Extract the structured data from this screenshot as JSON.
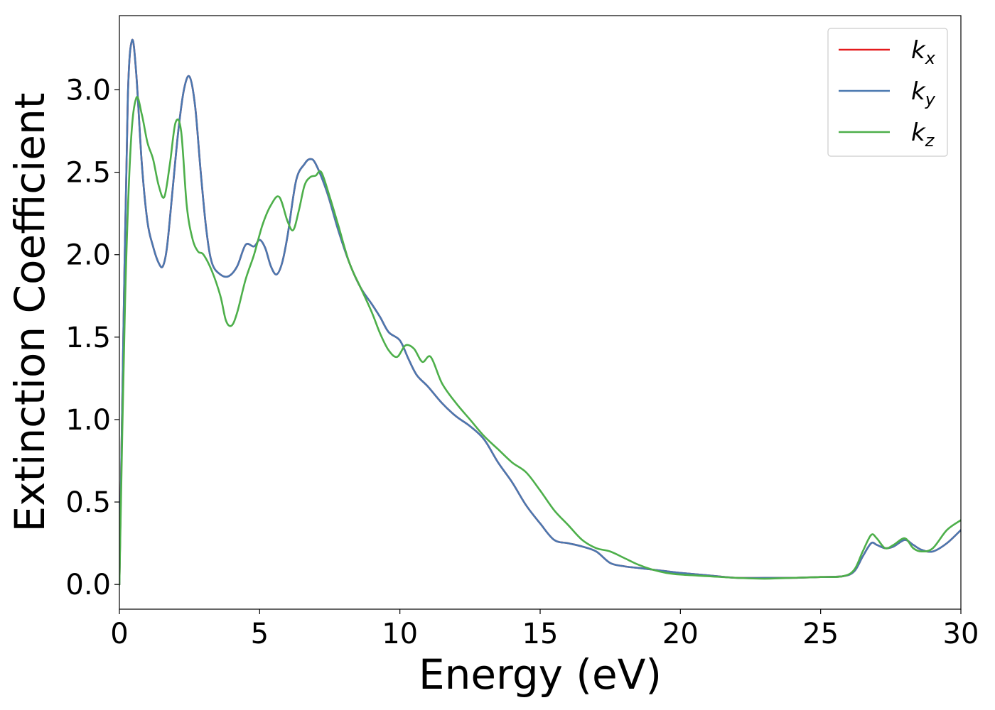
{
  "chart_data": {
    "type": "line",
    "title": "",
    "xlabel": "Energy (eV)",
    "ylabel": "Extinction Coefficient",
    "xlim": [
      0,
      30
    ],
    "ylim": [
      -0.15,
      3.45
    ],
    "xticks": [
      0,
      5,
      10,
      15,
      20,
      25,
      30
    ],
    "xtick_labels": [
      "0",
      "5",
      "10",
      "15",
      "20",
      "25",
      "30"
    ],
    "yticks": [
      0.0,
      0.5,
      1.0,
      1.5,
      2.0,
      2.5,
      3.0
    ],
    "ytick_labels": [
      "0.0",
      "0.5",
      "1.0",
      "1.5",
      "2.0",
      "2.5",
      "3.0"
    ],
    "grid": false,
    "legend_position": "top-right",
    "series": [
      {
        "name": "k",
        "subscript": "x",
        "color": "#e41a1c",
        "x": [
          0,
          0.15,
          0.3,
          0.45,
          0.6,
          0.8,
          1.0,
          1.2,
          1.4,
          1.55,
          1.7,
          1.9,
          2.1,
          2.3,
          2.5,
          2.7,
          2.9,
          3.1,
          3.3,
          3.6,
          3.9,
          4.2,
          4.5,
          4.8,
          5.0,
          5.2,
          5.4,
          5.6,
          5.8,
          6.0,
          6.3,
          6.6,
          6.8,
          7.0,
          7.4,
          7.8,
          8.2,
          8.6,
          9.0,
          9.3,
          9.6,
          10.0,
          10.3,
          10.6,
          11.0,
          11.5,
          12.0,
          12.5,
          13.0,
          13.5,
          14.0,
          14.5,
          15.0,
          15.5,
          16.0,
          16.5,
          17.0,
          17.5,
          18.0,
          18.5,
          19.0,
          19.5,
          20.0,
          21.0,
          22.0,
          23.0,
          24.0,
          25.0,
          25.8,
          26.2,
          26.5,
          26.8,
          27.0,
          27.3,
          27.6,
          28.0,
          28.3,
          28.6,
          29.0,
          29.5,
          30.0
        ],
        "y": [
          0.0,
          1.6,
          2.95,
          3.3,
          3.1,
          2.55,
          2.2,
          2.05,
          1.95,
          1.93,
          2.05,
          2.4,
          2.75,
          3.0,
          3.08,
          2.9,
          2.5,
          2.15,
          1.95,
          1.88,
          1.87,
          1.93,
          2.06,
          2.05,
          2.09,
          2.04,
          1.93,
          1.88,
          1.95,
          2.12,
          2.45,
          2.55,
          2.58,
          2.55,
          2.38,
          2.15,
          1.95,
          1.8,
          1.7,
          1.62,
          1.53,
          1.48,
          1.37,
          1.27,
          1.2,
          1.1,
          1.02,
          0.96,
          0.88,
          0.74,
          0.62,
          0.48,
          0.37,
          0.27,
          0.25,
          0.23,
          0.2,
          0.13,
          0.11,
          0.1,
          0.09,
          0.08,
          0.07,
          0.055,
          0.04,
          0.04,
          0.04,
          0.045,
          0.05,
          0.08,
          0.17,
          0.25,
          0.24,
          0.22,
          0.23,
          0.27,
          0.24,
          0.21,
          0.2,
          0.25,
          0.33
        ]
      },
      {
        "name": "k",
        "subscript": "y",
        "color": "#4a78b0",
        "x": [
          0,
          0.15,
          0.3,
          0.45,
          0.6,
          0.8,
          1.0,
          1.2,
          1.4,
          1.55,
          1.7,
          1.9,
          2.1,
          2.3,
          2.5,
          2.7,
          2.9,
          3.1,
          3.3,
          3.6,
          3.9,
          4.2,
          4.5,
          4.8,
          5.0,
          5.2,
          5.4,
          5.6,
          5.8,
          6.0,
          6.3,
          6.6,
          6.8,
          7.0,
          7.4,
          7.8,
          8.2,
          8.6,
          9.0,
          9.3,
          9.6,
          10.0,
          10.3,
          10.6,
          11.0,
          11.5,
          12.0,
          12.5,
          13.0,
          13.5,
          14.0,
          14.5,
          15.0,
          15.5,
          16.0,
          16.5,
          17.0,
          17.5,
          18.0,
          18.5,
          19.0,
          19.5,
          20.0,
          21.0,
          22.0,
          23.0,
          24.0,
          25.0,
          25.8,
          26.2,
          26.5,
          26.8,
          27.0,
          27.3,
          27.6,
          28.0,
          28.3,
          28.6,
          29.0,
          29.5,
          30.0
        ],
        "y": [
          0.0,
          1.6,
          2.95,
          3.3,
          3.1,
          2.55,
          2.2,
          2.05,
          1.95,
          1.93,
          2.05,
          2.4,
          2.75,
          3.0,
          3.08,
          2.9,
          2.5,
          2.15,
          1.95,
          1.88,
          1.87,
          1.93,
          2.06,
          2.05,
          2.09,
          2.04,
          1.93,
          1.88,
          1.95,
          2.12,
          2.45,
          2.55,
          2.58,
          2.55,
          2.38,
          2.15,
          1.95,
          1.8,
          1.7,
          1.62,
          1.53,
          1.48,
          1.37,
          1.27,
          1.2,
          1.1,
          1.02,
          0.96,
          0.88,
          0.74,
          0.62,
          0.48,
          0.37,
          0.27,
          0.25,
          0.23,
          0.2,
          0.13,
          0.11,
          0.1,
          0.09,
          0.08,
          0.07,
          0.055,
          0.04,
          0.04,
          0.04,
          0.045,
          0.05,
          0.08,
          0.17,
          0.25,
          0.24,
          0.22,
          0.23,
          0.27,
          0.24,
          0.21,
          0.2,
          0.25,
          0.33
        ]
      },
      {
        "name": "k",
        "subscript": "z",
        "color": "#4daf4a",
        "x": [
          0,
          0.2,
          0.4,
          0.6,
          0.8,
          1.0,
          1.2,
          1.4,
          1.6,
          1.8,
          2.0,
          2.2,
          2.4,
          2.6,
          2.8,
          3.0,
          3.3,
          3.6,
          3.8,
          4.0,
          4.2,
          4.5,
          4.8,
          5.1,
          5.4,
          5.7,
          6.0,
          6.2,
          6.4,
          6.6,
          6.8,
          7.0,
          7.2,
          7.5,
          7.8,
          8.2,
          8.6,
          9.0,
          9.3,
          9.6,
          9.9,
          10.2,
          10.5,
          10.8,
          11.1,
          11.5,
          12.0,
          12.5,
          13.0,
          13.5,
          14.0,
          14.5,
          15.0,
          15.5,
          16.0,
          16.5,
          17.0,
          17.5,
          18.0,
          18.5,
          19.0,
          19.5,
          20.0,
          21.0,
          22.0,
          23.0,
          24.0,
          25.0,
          25.8,
          26.2,
          26.5,
          26.8,
          27.0,
          27.3,
          27.6,
          28.0,
          28.3,
          28.6,
          29.0,
          29.5,
          30.0
        ],
        "y": [
          0.0,
          1.7,
          2.65,
          2.95,
          2.85,
          2.68,
          2.58,
          2.42,
          2.35,
          2.55,
          2.8,
          2.75,
          2.3,
          2.1,
          2.02,
          2.0,
          1.9,
          1.75,
          1.6,
          1.57,
          1.65,
          1.85,
          2.0,
          2.18,
          2.3,
          2.35,
          2.2,
          2.15,
          2.27,
          2.42,
          2.47,
          2.48,
          2.5,
          2.35,
          2.18,
          1.95,
          1.8,
          1.65,
          1.52,
          1.42,
          1.38,
          1.45,
          1.43,
          1.35,
          1.38,
          1.22,
          1.1,
          1.0,
          0.9,
          0.82,
          0.74,
          0.68,
          0.57,
          0.45,
          0.36,
          0.27,
          0.22,
          0.2,
          0.16,
          0.12,
          0.09,
          0.07,
          0.06,
          0.05,
          0.04,
          0.035,
          0.04,
          0.045,
          0.05,
          0.09,
          0.2,
          0.3,
          0.28,
          0.22,
          0.24,
          0.28,
          0.22,
          0.2,
          0.22,
          0.33,
          0.39
        ]
      }
    ]
  }
}
